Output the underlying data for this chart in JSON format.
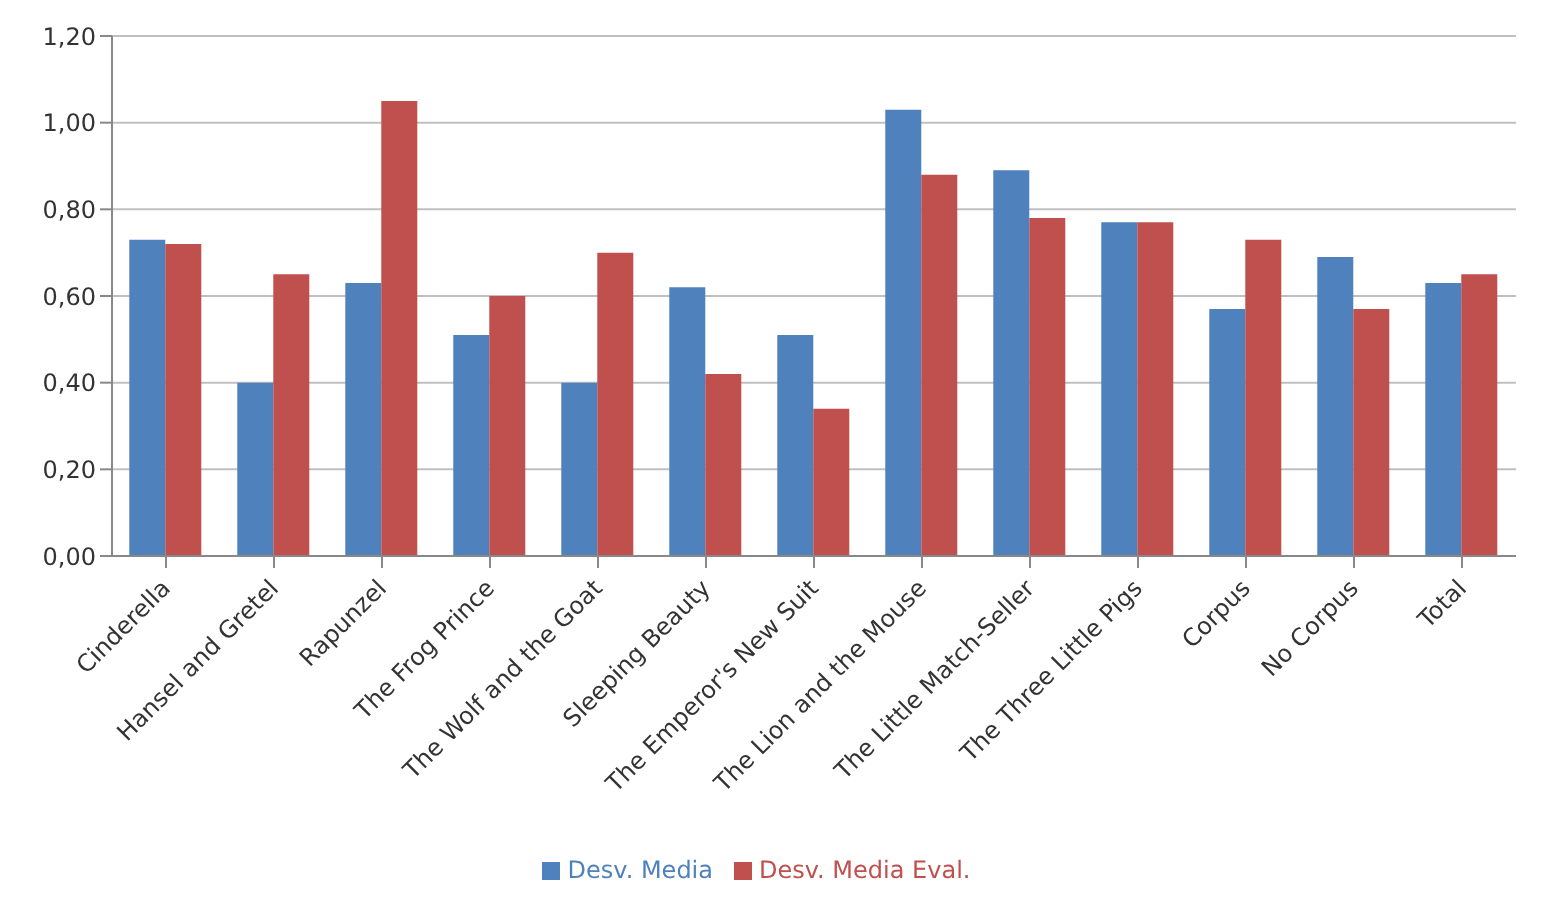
{
  "chart_data": {
    "type": "bar",
    "categories": [
      "Cinderella",
      "Hansel and Gretel",
      "Rapunzel",
      "The Frog Prince",
      "The Wolf and the Goat",
      "Sleeping Beauty",
      "The Emperor's New Suit",
      "The Lion and the Mouse",
      "The Little Match-Seller",
      "The Three Little Pigs",
      "Corpus",
      "No Corpus",
      "Total"
    ],
    "series": [
      {
        "name": "Desv. Media",
        "color": "#4f81bd",
        "values": [
          0.73,
          0.4,
          0.63,
          0.51,
          0.4,
          0.62,
          0.51,
          1.03,
          0.89,
          0.77,
          0.57,
          0.69,
          0.63
        ]
      },
      {
        "name": "Desv. Media Eval.",
        "color": "#c0504d",
        "values": [
          0.72,
          0.65,
          1.05,
          0.6,
          0.7,
          0.42,
          0.34,
          0.88,
          0.78,
          0.77,
          0.73,
          0.57,
          0.65
        ]
      }
    ],
    "ylim": [
      0,
      1.2
    ],
    "yticks": [
      {
        "value": 0,
        "label": "0,00"
      },
      {
        "value": 0.2,
        "label": "0,20"
      },
      {
        "value": 0.4,
        "label": "0,40"
      },
      {
        "value": 0.6,
        "label": "0,60"
      },
      {
        "value": 0.8,
        "label": "0,80"
      },
      {
        "value": 1,
        "label": "1,00"
      },
      {
        "value": 1.2,
        "label": "1,20"
      }
    ],
    "grid": "y",
    "legend": "bottom"
  }
}
